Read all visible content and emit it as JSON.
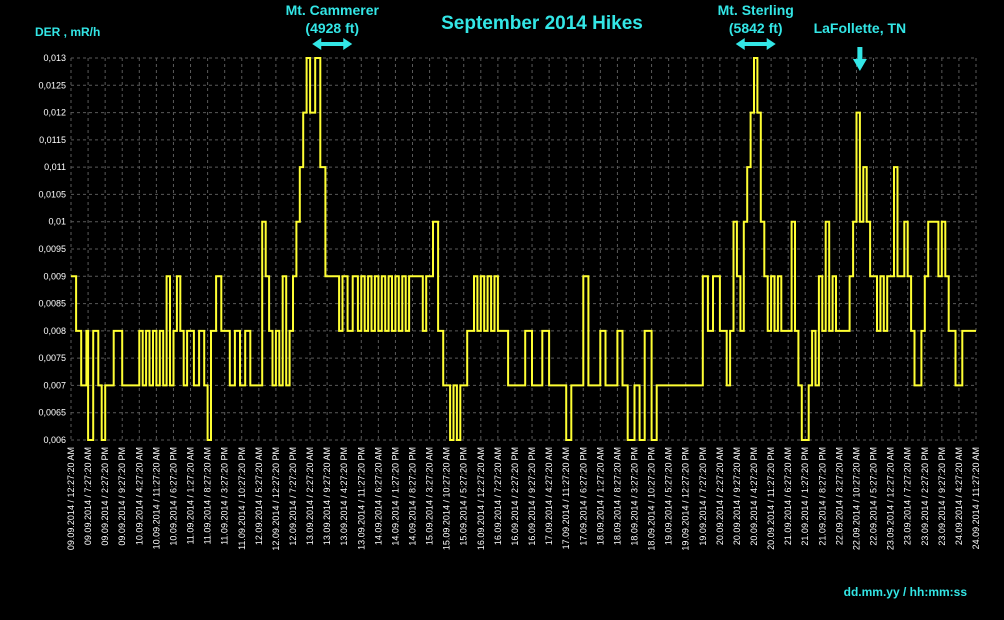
{
  "chart_data": {
    "type": "line",
    "title": "September 2014 Hikes",
    "ylabel": "DER , mR/h",
    "xlabel": "dd.mm.yy / hh:mm:ss",
    "ylim": [
      0.006,
      0.013
    ],
    "grid": true,
    "colors": {
      "line": "#ffff33",
      "text": "#33e6e6",
      "ticks": "#ffffff",
      "grid": "#5a5a5a",
      "background": "#000000"
    },
    "y_ticks": [
      "0,006",
      "0,0065",
      "0,007",
      "0,0075",
      "0,008",
      "0,0085",
      "0,009",
      "0,0095",
      "0,01",
      "0,0105",
      "0,011",
      "0,0115",
      "0,012",
      "0,0125",
      "0,013"
    ],
    "x_ticks": [
      "09.09.2014 / 12:27:20 AM",
      "09.09.2014 / 7:27:20 AM",
      "09.09.2014 / 2:27:20 PM",
      "09.09.2014 / 9:27:20 PM",
      "10.09.2014 / 4:27:20 AM",
      "10.09.2014 / 11:27:20 AM",
      "10.09.2014 / 6:27:20 PM",
      "11.09.2014 / 1:27:20 AM",
      "11.09.2014 / 8:27:20 AM",
      "11.09.2014 / 3:27:20 PM",
      "11.09.2014 / 10:27:20 PM",
      "12.09.2014 / 5:27:20 AM",
      "12.09.2014 / 12:27:20 PM",
      "12.09.2014 / 7:27:20 PM",
      "13.09.2014 / 2:27:20 AM",
      "13.09.2014 / 9:27:20 AM",
      "13.09.2014 / 4:27:20 PM",
      "13.09.2014 / 11:27:20 PM",
      "14.09.2014 / 6:27:20 AM",
      "14.09.2014 / 1:27:20 PM",
      "14.09.2014 / 8:27:20 PM",
      "15.09.2014 / 3:27:20 AM",
      "15.09.2014 / 10:27:20 AM",
      "15.09.2014 / 5:27:20 PM",
      "16.09.2014 / 12:27:20 AM",
      "16.09.2014 / 7:27:20 AM",
      "16.09.2014 / 2:27:20 PM",
      "16.09.2014 / 9:27:20 PM",
      "17.09.2014 / 4:27:20 AM",
      "17.09.2014 / 11:27:20 AM",
      "17.09.2014 / 6:27:20 PM",
      "18.09.2014 / 1:27:20 AM",
      "18.09.2014 / 8:27:20 AM",
      "18.09.2014 / 3:27:20 PM",
      "18.09.2014 / 10:27:20 PM",
      "19.09.2014 / 5:27:20 AM",
      "19.09.2014 / 12:27:20 PM",
      "19.09.2014 / 7:27:20 PM",
      "20.09.2014 / 2:27:20 AM",
      "20.09.2014 / 9:27:20 AM",
      "20.09.2014 / 4:27:20 PM",
      "20.09.2014 / 11:27:20 PM",
      "21.09.2014 / 6:27:20 AM",
      "21.09.2014 / 1:27:20 PM",
      "21.09.2014 / 8:27:20 PM",
      "22.09.2014 / 3:27:20 AM",
      "22.09.2014 / 10:27:20 AM",
      "22.09.2014 / 5:27:20 PM",
      "23.09.2014 / 12:27:20 AM",
      "23.09.2014 / 7:27:20 AM",
      "23.09.2014 / 2:27:20 PM",
      "23.09.2014 / 9:27:20 PM",
      "24.09.2014 / 4:27:20 AM",
      "24.09.2014 / 11:27:20 AM"
    ],
    "annotations": [
      {
        "lines": [
          "Mt. Cammerer",
          "(4928 ft)"
        ],
        "arrow": "double-horizontal",
        "at_tick": 15.3
      },
      {
        "lines": [
          "Mt. Sterling",
          "(5842 ft)"
        ],
        "arrow": "double-horizontal",
        "at_tick": 40.1
      },
      {
        "lines": [
          "LaFollette, TN"
        ],
        "arrow": "down",
        "at_tick": 46.2
      }
    ],
    "series": [
      {
        "x_tick_index": [
          0,
          0.3,
          0.6,
          0.9,
          1.0,
          1.3,
          1.6,
          1.8,
          2.0,
          2.3,
          2.5,
          2.7,
          3.0,
          3.3,
          3.6,
          4.0,
          4.2,
          4.4,
          4.6,
          4.8,
          5.0,
          5.2,
          5.4,
          5.6,
          5.8,
          6.0,
          6.2,
          6.4,
          6.6,
          6.8,
          7.0,
          7.2,
          7.5,
          7.8,
          8.0,
          8.2,
          8.5,
          8.8,
          9.0,
          9.3,
          9.6,
          9.9,
          10.2,
          10.5,
          10.8,
          11.0,
          11.2,
          11.4,
          11.6,
          11.8,
          12.0,
          12.2,
          12.4,
          12.6,
          12.8,
          13.0,
          13.2,
          13.4,
          13.6,
          13.8,
          14.0,
          14.3,
          14.6,
          14.9,
          15.1,
          15.3,
          15.5,
          15.7,
          15.9,
          16.2,
          16.5,
          16.8,
          17.0,
          17.2,
          17.4,
          17.6,
          17.8,
          18.0,
          18.2,
          18.4,
          18.6,
          18.8,
          19.0,
          19.2,
          19.4,
          19.6,
          19.8,
          20.0,
          20.2,
          20.4,
          20.6,
          20.8,
          21.0,
          21.2,
          21.5,
          21.8,
          22.0,
          22.2,
          22.4,
          22.6,
          22.8,
          23.0,
          23.2,
          23.4,
          23.6,
          23.8,
          24.0,
          24.2,
          24.4,
          24.6,
          24.8,
          25.0,
          25.2,
          25.4,
          25.6,
          25.8,
          26.0,
          26.3,
          26.6,
          27.0,
          27.3,
          27.6,
          28.0,
          28.3,
          28.6,
          29.0,
          29.3,
          29.6,
          30.0,
          30.3,
          30.6,
          31.0,
          31.3,
          31.6,
          32.0,
          32.3,
          32.6,
          33.0,
          33.3,
          33.6,
          34.0,
          34.3,
          34.6,
          35.0,
          35.3,
          35.6,
          36.0,
          36.3,
          36.6,
          37.0,
          37.3,
          37.6,
          38.0,
          38.2,
          38.4,
          38.6,
          38.8,
          39.0,
          39.2,
          39.4,
          39.6,
          39.8,
          40.0,
          40.2,
          40.4,
          40.6,
          40.8,
          41.0,
          41.2,
          41.4,
          41.6,
          41.8,
          42.0,
          42.2,
          42.4,
          42.6,
          42.8,
          43.0,
          43.2,
          43.4,
          43.6,
          43.8,
          44.0,
          44.2,
          44.4,
          44.6,
          44.8,
          45.0,
          45.2,
          45.4,
          45.6,
          45.8,
          46.0,
          46.2,
          46.4,
          46.6,
          46.8,
          47.0,
          47.2,
          47.4,
          47.6,
          47.8,
          48.0,
          48.2,
          48.4,
          48.6,
          48.8,
          49.0,
          49.2,
          49.4,
          49.6,
          49.8,
          50.0,
          50.2,
          50.4,
          50.6,
          50.8,
          51.0,
          51.2,
          51.4,
          51.6,
          51.8,
          52.0,
          52.2,
          52.4,
          52.6,
          52.8,
          53.0
        ],
        "values": [
          0.009,
          0.008,
          0.007,
          0.008,
          0.006,
          0.008,
          0.007,
          0.006,
          0.007,
          0.007,
          0.008,
          0.008,
          0.007,
          0.007,
          0.007,
          0.008,
          0.007,
          0.008,
          0.007,
          0.008,
          0.007,
          0.008,
          0.007,
          0.009,
          0.007,
          0.008,
          0.009,
          0.008,
          0.007,
          0.008,
          0.008,
          0.007,
          0.008,
          0.007,
          0.006,
          0.008,
          0.009,
          0.008,
          0.008,
          0.007,
          0.008,
          0.007,
          0.008,
          0.007,
          0.007,
          0.007,
          0.01,
          0.009,
          0.008,
          0.007,
          0.008,
          0.007,
          0.009,
          0.007,
          0.008,
          0.009,
          0.01,
          0.011,
          0.012,
          0.013,
          0.012,
          0.013,
          0.011,
          0.009,
          0.009,
          0.009,
          0.009,
          0.008,
          0.009,
          0.008,
          0.009,
          0.008,
          0.009,
          0.008,
          0.009,
          0.008,
          0.009,
          0.008,
          0.009,
          0.008,
          0.009,
          0.008,
          0.009,
          0.008,
          0.009,
          0.008,
          0.009,
          0.009,
          0.009,
          0.009,
          0.008,
          0.009,
          0.009,
          0.01,
          0.008,
          0.007,
          0.007,
          0.006,
          0.007,
          0.006,
          0.007,
          0.007,
          0.008,
          0.008,
          0.009,
          0.008,
          0.009,
          0.008,
          0.009,
          0.008,
          0.009,
          0.008,
          0.008,
          0.008,
          0.007,
          0.007,
          0.007,
          0.007,
          0.008,
          0.007,
          0.007,
          0.008,
          0.007,
          0.007,
          0.007,
          0.006,
          0.007,
          0.007,
          0.009,
          0.007,
          0.007,
          0.008,
          0.007,
          0.007,
          0.008,
          0.007,
          0.006,
          0.007,
          0.006,
          0.008,
          0.006,
          0.007,
          0.007,
          0.007,
          0.007,
          0.007,
          0.007,
          0.007,
          0.007,
          0.009,
          0.008,
          0.009,
          0.008,
          0.008,
          0.007,
          0.008,
          0.01,
          0.009,
          0.008,
          0.01,
          0.011,
          0.012,
          0.013,
          0.012,
          0.01,
          0.009,
          0.008,
          0.009,
          0.008,
          0.009,
          0.008,
          0.008,
          0.008,
          0.01,
          0.008,
          0.007,
          0.006,
          0.006,
          0.007,
          0.008,
          0.007,
          0.009,
          0.008,
          0.01,
          0.008,
          0.009,
          0.008,
          0.008,
          0.008,
          0.008,
          0.009,
          0.01,
          0.012,
          0.01,
          0.011,
          0.01,
          0.009,
          0.009,
          0.008,
          0.009,
          0.008,
          0.009,
          0.009,
          0.011,
          0.009,
          0.009,
          0.01,
          0.009,
          0.008,
          0.007,
          0.007,
          0.008,
          0.009,
          0.01,
          0.01,
          0.01,
          0.009,
          0.01,
          0.009,
          0.008,
          0.008,
          0.007,
          0.007,
          0.008
        ]
      }
    ]
  }
}
